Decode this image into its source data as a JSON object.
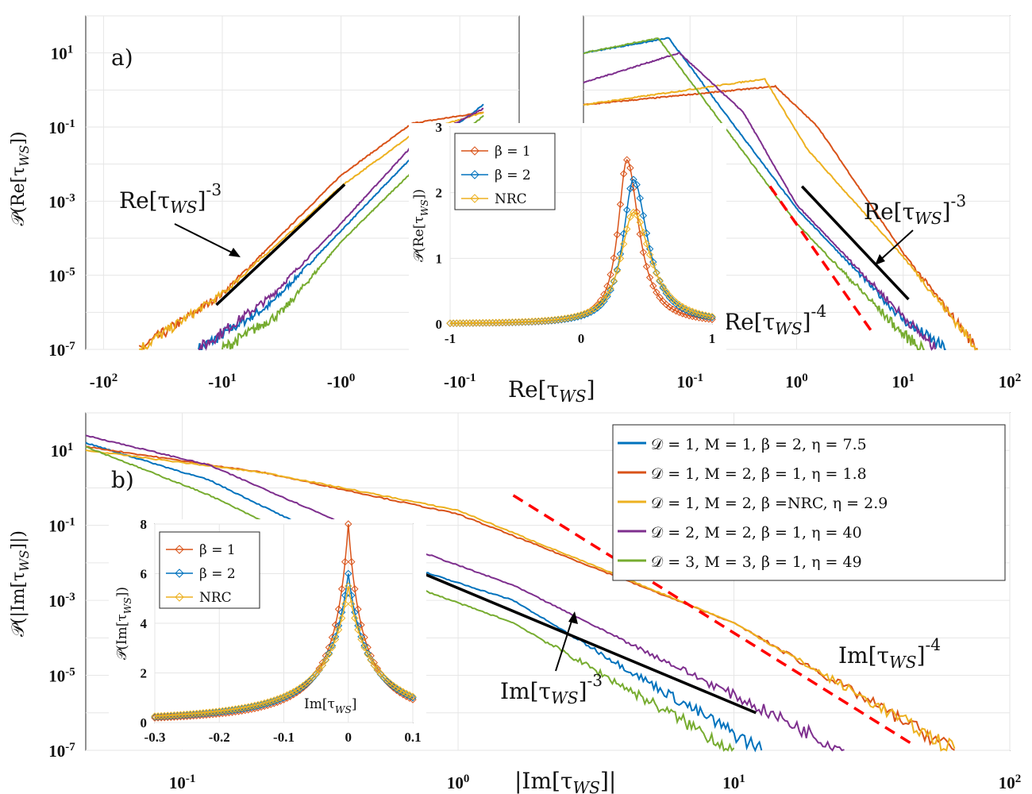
{
  "colors": {
    "blue": "#0072bd",
    "orange": "#d95319",
    "yellow": "#edb120",
    "purple": "#7e2f8e",
    "green": "#77ac30",
    "red": "#ff0000",
    "black": "#000000"
  },
  "chart_data": [
    {
      "id": "a",
      "type": "line",
      "panel_label": "a)",
      "scale": "log-log (split negative / positive)",
      "xlabel": "Re[τ_WS]",
      "ylabel": "𝒫(Re[τ_WS])",
      "y_tick_labels": [
        "10^1",
        "10^-1",
        "10^-3",
        "10^-5",
        "10^-7"
      ],
      "x_tick_labels_left": [
        "-10^2",
        "-10^1",
        "-10^0",
        "-10^-1"
      ],
      "x_tick_labels_right": [
        "10^-1",
        "10^0",
        "10^1",
        "10^2"
      ],
      "ylim_log10": [
        -7,
        2
      ],
      "annotations": [
        {
          "text": "Re[τ_WS]^-3",
          "slope": -3,
          "side": "negative"
        },
        {
          "text": "Re[τ_WS]^-3",
          "slope": -3,
          "side": "positive"
        },
        {
          "text": "Re[τ_WS]^-4",
          "slope": -4,
          "side": "positive",
          "style": "red dashed"
        }
      ],
      "series_shape_neg": [
        {
          "name": "D=1,M=1,β=2,η=7.5",
          "key": "blue",
          "x_log10_abs": [
            1.2,
            0.6,
            0.0,
            -0.6,
            -1.2
          ],
          "y_log10": [
            -7,
            -5.8,
            -3.8,
            -1.8,
            -0.4
          ]
        },
        {
          "name": "D=1,M=2,β=1,η=1.8",
          "key": "orange",
          "x_log10_abs": [
            1.7,
            1.0,
            0.0,
            -0.6,
            -1.2
          ],
          "y_log10": [
            -7,
            -5.5,
            -2.3,
            -0.9,
            -0.6
          ]
        },
        {
          "name": "D=1,M=2,β=NRC,η=2.9",
          "key": "yellow",
          "x_log10_abs": [
            1.7,
            1.0,
            0.0,
            -0.6,
            -1.2
          ],
          "y_log10": [
            -7,
            -5.5,
            -2.6,
            -1.2,
            -0.6
          ]
        },
        {
          "name": "D=2,M=2,β=1,η=40",
          "key": "purple",
          "x_log10_abs": [
            1.2,
            0.6,
            0.0,
            -0.6,
            -1.2
          ],
          "y_log10": [
            -7,
            -5.6,
            -3.6,
            -1.5,
            -0.5
          ]
        },
        {
          "name": "D=3,M=3,β=1,η=49",
          "key": "green",
          "x_log10_abs": [
            1.0,
            0.5,
            0.0,
            -0.6,
            -1.2
          ],
          "y_log10": [
            -7,
            -6.0,
            -4.1,
            -2.2,
            -0.7
          ]
        }
      ],
      "series_shape_pos": [
        {
          "key": "blue",
          "x_log10": [
            -2,
            -1.2,
            0.0,
            1.0,
            1.4
          ],
          "y_log10": [
            1.0,
            1.4,
            -3.2,
            -6.2,
            -7
          ]
        },
        {
          "key": "orange",
          "x_log10": [
            -2,
            -0.2,
            0.2,
            1.0,
            1.7
          ],
          "y_log10": [
            -0.4,
            0.1,
            -1.0,
            -4.4,
            -7
          ]
        },
        {
          "key": "yellow",
          "x_log10": [
            -2,
            -0.3,
            0.1,
            1.0,
            1.7
          ],
          "y_log10": [
            -0.4,
            0.3,
            -1.6,
            -4.5,
            -7
          ]
        },
        {
          "key": "purple",
          "x_log10": [
            -2,
            -1.1,
            -0.5,
            0.0,
            1.3
          ],
          "y_log10": [
            0.2,
            1.0,
            -0.6,
            -3.1,
            -7
          ]
        },
        {
          "key": "green",
          "x_log10": [
            -2,
            -1.3,
            0.0,
            1.0,
            1.2
          ],
          "y_log10": [
            1.0,
            1.4,
            -3.6,
            -6.6,
            -7
          ]
        }
      ],
      "inset": {
        "type": "line",
        "ylabel": "𝒫(Re[τ_WS])",
        "x_tick_labels": [
          "-1",
          "0",
          "1"
        ],
        "y_tick_labels": [
          "0",
          "1",
          "2",
          "3"
        ],
        "xlim": [
          -1,
          1
        ],
        "ylim": [
          0,
          3
        ],
        "legend": [
          "β = 1",
          "β = 2",
          "NRC"
        ],
        "series": [
          {
            "name": "β = 1",
            "key": "orange",
            "peak_x": 0.35,
            "peak_y": 2.5
          },
          {
            "name": "β = 2",
            "key": "blue",
            "peak_x": 0.4,
            "peak_y": 2.2
          },
          {
            "name": "NRC",
            "key": "yellow",
            "peak_x": 0.4,
            "peak_y": 1.7
          }
        ]
      }
    },
    {
      "id": "b",
      "type": "line",
      "panel_label": "b)",
      "scale": "log-log",
      "xlabel": "|Im[τ_WS]|",
      "ylabel": "𝒫(|Im[τ_WS]|)",
      "x_tick_labels": [
        "10^-1",
        "10^0",
        "10^1",
        "10^2"
      ],
      "y_tick_labels": [
        "10^1",
        "10^-1",
        "10^-3",
        "10^-5",
        "10^-7"
      ],
      "xlim_log10": [
        -1.35,
        2
      ],
      "ylim_log10": [
        -7,
        2
      ],
      "annotations": [
        {
          "text": "Im[τ_WS]^-3",
          "slope": -3
        },
        {
          "text": "Im[τ_WS]^-4",
          "slope": -4,
          "style": "red dashed"
        }
      ],
      "legend": [
        {
          "label": "𝒟 = 1, M = 1, β = 2, η = 7.5",
          "key": "blue"
        },
        {
          "label": "𝒟 = 1, M = 2, β = 1, η = 1.8",
          "key": "orange"
        },
        {
          "label": "𝒟 = 1, M = 2, β =NRC, η = 2.9",
          "key": "yellow"
        },
        {
          "label": "𝒟 = 2, M = 2, β = 1, η = 40",
          "key": "purple"
        },
        {
          "label": "𝒟 = 3, M = 3, β = 1, η = 49",
          "key": "green"
        }
      ],
      "series_shape": [
        {
          "key": "blue",
          "x_log10": [
            -1.35,
            -0.9,
            -0.4,
            0.2,
            1.1
          ],
          "y_log10": [
            1.2,
            0.2,
            -1.6,
            -3.0,
            -7
          ]
        },
        {
          "key": "orange",
          "x_log10": [
            -1.35,
            -0.7,
            0.0,
            1.0,
            1.8
          ],
          "y_log10": [
            1.1,
            0.4,
            -0.7,
            -3.6,
            -7
          ]
        },
        {
          "key": "yellow",
          "x_log10": [
            -1.35,
            -0.7,
            0.0,
            1.0,
            1.8
          ],
          "y_log10": [
            1.0,
            0.4,
            -0.6,
            -3.6,
            -7
          ]
        },
        {
          "key": "purple",
          "x_log10": [
            -1.35,
            -0.9,
            -0.4,
            0.2,
            1.4
          ],
          "y_log10": [
            1.4,
            0.6,
            -1.0,
            -2.6,
            -7
          ]
        },
        {
          "key": "green",
          "x_log10": [
            -1.35,
            -0.9,
            -0.4,
            0.2,
            1.0
          ],
          "y_log10": [
            1.1,
            -0.2,
            -2.0,
            -3.6,
            -7
          ]
        }
      ],
      "inset": {
        "type": "line",
        "ylabel": "𝒫(Im[τ_WS])",
        "xlabel": "Im[τ_WS]",
        "x_tick_labels": [
          "-0.3",
          "-0.2",
          "-0.1",
          "0",
          "0.1"
        ],
        "y_tick_labels": [
          "0",
          "2",
          "4",
          "6",
          "8"
        ],
        "xlim": [
          -0.3,
          0.1
        ],
        "ylim": [
          0,
          8
        ],
        "legend": [
          "β = 1",
          "β = 2",
          "NRC"
        ],
        "series": [
          {
            "name": "β = 1",
            "key": "orange",
            "peak_x": 0.0,
            "peak_y": 8.0
          },
          {
            "name": "β = 2",
            "key": "blue",
            "peak_x": 0.0,
            "peak_y": 6.0
          },
          {
            "name": "NRC",
            "key": "yellow",
            "peak_x": 0.0,
            "peak_y": 5.5
          }
        ]
      }
    }
  ]
}
